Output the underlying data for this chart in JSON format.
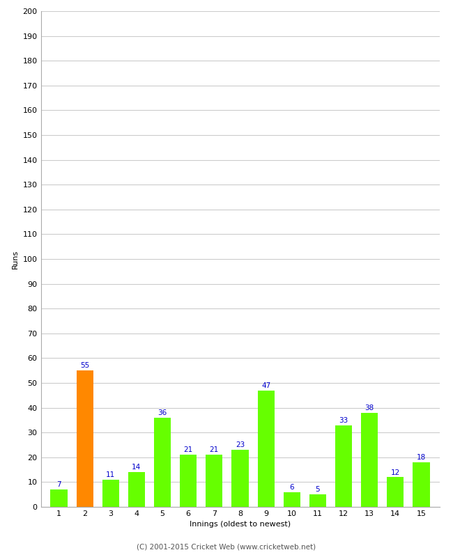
{
  "innings": [
    1,
    2,
    3,
    4,
    5,
    6,
    7,
    8,
    9,
    10,
    11,
    12,
    13,
    14,
    15
  ],
  "runs": [
    7,
    55,
    11,
    14,
    36,
    21,
    21,
    23,
    47,
    6,
    5,
    33,
    38,
    12,
    18
  ],
  "bar_colors": [
    "#66ff00",
    "#ff8800",
    "#66ff00",
    "#66ff00",
    "#66ff00",
    "#66ff00",
    "#66ff00",
    "#66ff00",
    "#66ff00",
    "#66ff00",
    "#66ff00",
    "#66ff00",
    "#66ff00",
    "#66ff00",
    "#66ff00"
  ],
  "xlabel": "Innings (oldest to newest)",
  "ylabel": "Runs",
  "ylim": [
    0,
    200
  ],
  "ytick_step": 10,
  "label_color": "#0000cc",
  "label_fontsize": 7.5,
  "axis_label_fontsize": 8,
  "tick_fontsize": 8,
  "footer": "(C) 2001-2015 Cricket Web (www.cricketweb.net)",
  "background_color": "#ffffff",
  "grid_color": "#cccccc"
}
